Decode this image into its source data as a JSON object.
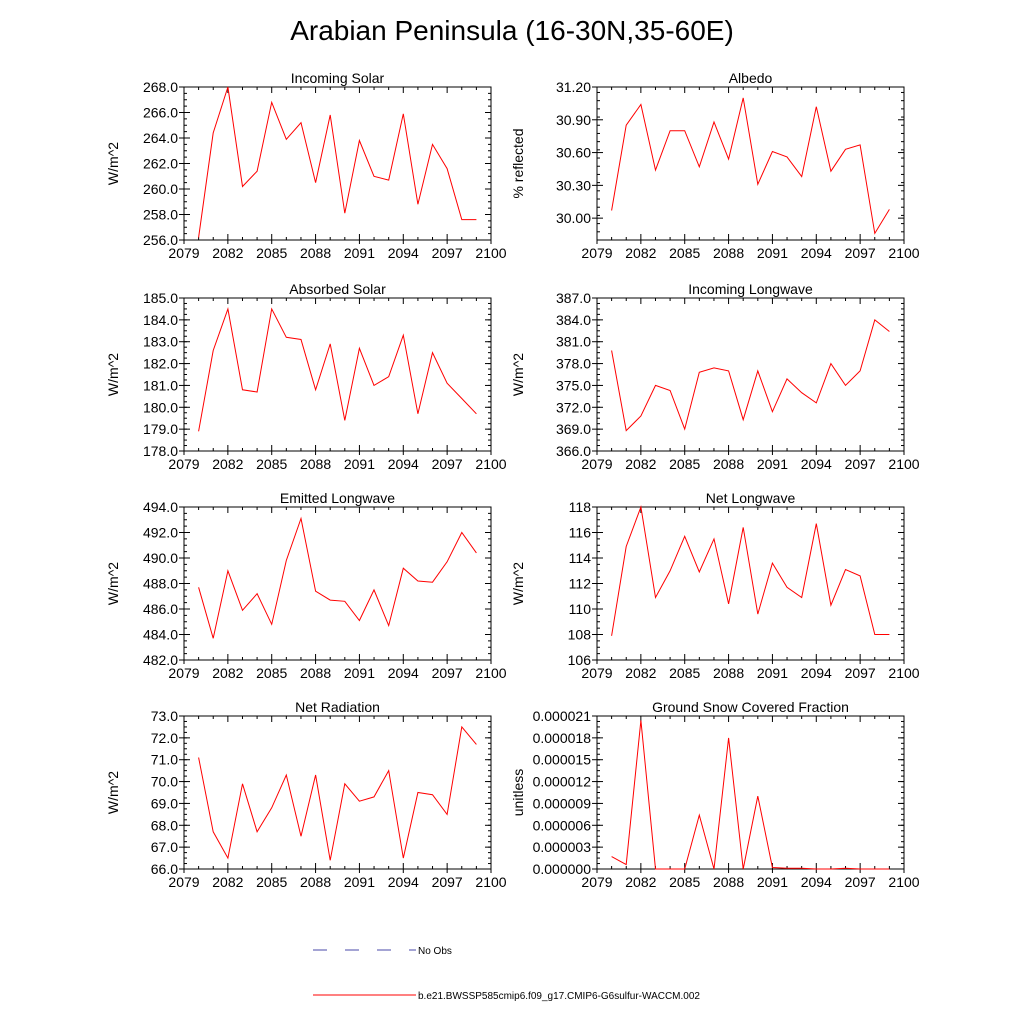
{
  "title": "Arabian Peninsula (16-30N,35-60E)",
  "line_color": "#ff0000",
  "obs_color": "#4a4aa8",
  "legend": {
    "obs_label": "No Obs",
    "model_label": "b.e21.BWSSP585cmip6.f09_g17.CMIP6-G6sulfur-WACCM.002"
  },
  "chart_data": [
    {
      "type": "line",
      "title": "Incoming Solar",
      "ylabel": "W/m^2",
      "xlim": [
        2079,
        2100
      ],
      "ylim": [
        256,
        268
      ],
      "xticks": [
        "2079",
        "2082",
        "2085",
        "2088",
        "2091",
        "2094",
        "2097",
        "2100"
      ],
      "yticks": [
        "256.0",
        "258.0",
        "260.0",
        "262.0",
        "264.0",
        "266.0",
        "268.0"
      ],
      "x": [
        2080,
        2081,
        2082,
        2083,
        2084,
        2085,
        2086,
        2087,
        2088,
        2089,
        2090,
        2091,
        2092,
        2093,
        2094,
        2095,
        2096,
        2097,
        2098,
        2099
      ],
      "values": [
        256.2,
        264.4,
        268.0,
        260.2,
        261.4,
        266.8,
        263.9,
        265.2,
        260.5,
        265.8,
        258.1,
        263.8,
        261.0,
        260.7,
        265.9,
        258.8,
        263.5,
        261.6,
        257.6,
        257.6
      ]
    },
    {
      "type": "line",
      "title": "Albedo",
      "ylabel": "% reflected",
      "xlim": [
        2079,
        2100
      ],
      "ylim": [
        29.8,
        31.2
      ],
      "xticks": [
        "2079",
        "2082",
        "2085",
        "2088",
        "2091",
        "2094",
        "2097",
        "2100"
      ],
      "yticks": [
        "30.00",
        "30.30",
        "30.60",
        "30.90",
        "31.20"
      ],
      "x": [
        2080,
        2081,
        2082,
        2083,
        2084,
        2085,
        2086,
        2087,
        2088,
        2089,
        2090,
        2091,
        2092,
        2093,
        2094,
        2095,
        2096,
        2097,
        2098,
        2099
      ],
      "values": [
        30.07,
        30.85,
        31.04,
        30.44,
        30.8,
        30.8,
        30.47,
        30.88,
        30.54,
        31.1,
        30.31,
        30.61,
        30.56,
        30.38,
        31.02,
        30.43,
        30.63,
        30.67,
        29.86,
        30.08
      ]
    },
    {
      "type": "line",
      "title": "Absorbed Solar",
      "ylabel": "W/m^2",
      "xlim": [
        2079,
        2100
      ],
      "ylim": [
        178,
        185
      ],
      "xticks": [
        "2079",
        "2082",
        "2085",
        "2088",
        "2091",
        "2094",
        "2097",
        "2100"
      ],
      "yticks": [
        "178.0",
        "179.0",
        "180.0",
        "181.0",
        "182.0",
        "183.0",
        "184.0",
        "185.0"
      ],
      "x": [
        2080,
        2081,
        2082,
        2083,
        2084,
        2085,
        2086,
        2087,
        2088,
        2089,
        2090,
        2091,
        2092,
        2093,
        2094,
        2095,
        2096,
        2097,
        2098,
        2099
      ],
      "values": [
        178.9,
        182.6,
        184.5,
        180.8,
        180.7,
        184.5,
        183.2,
        183.1,
        180.8,
        182.9,
        179.4,
        182.7,
        181.0,
        181.4,
        183.3,
        179.7,
        182.5,
        181.1,
        180.4,
        179.7
      ]
    },
    {
      "type": "line",
      "title": "Incoming Longwave",
      "ylabel": "W/m^2",
      "xlim": [
        2079,
        2100
      ],
      "ylim": [
        366,
        387
      ],
      "xticks": [
        "2079",
        "2082",
        "2085",
        "2088",
        "2091",
        "2094",
        "2097",
        "2100"
      ],
      "yticks": [
        "366.0",
        "369.0",
        "372.0",
        "375.0",
        "378.0",
        "381.0",
        "384.0",
        "387.0"
      ],
      "x": [
        2080,
        2081,
        2082,
        2083,
        2084,
        2085,
        2086,
        2087,
        2088,
        2089,
        2090,
        2091,
        2092,
        2093,
        2094,
        2095,
        2096,
        2097,
        2098,
        2099
      ],
      "values": [
        379.8,
        368.8,
        370.8,
        375.0,
        374.3,
        369.0,
        376.8,
        377.4,
        377.0,
        370.3,
        377.0,
        371.4,
        375.9,
        374.0,
        372.6,
        378.0,
        375.0,
        377.0,
        384.0,
        382.4
      ]
    },
    {
      "type": "line",
      "title": "Emitted Longwave",
      "ylabel": "W/m^2",
      "xlim": [
        2079,
        2100
      ],
      "ylim": [
        482,
        494
      ],
      "xticks": [
        "2079",
        "2082",
        "2085",
        "2088",
        "2091",
        "2094",
        "2097",
        "2100"
      ],
      "yticks": [
        "482.0",
        "484.0",
        "486.0",
        "488.0",
        "490.0",
        "492.0",
        "494.0"
      ],
      "x": [
        2080,
        2081,
        2082,
        2083,
        2084,
        2085,
        2086,
        2087,
        2088,
        2089,
        2090,
        2091,
        2092,
        2093,
        2094,
        2095,
        2096,
        2097,
        2098,
        2099
      ],
      "values": [
        487.7,
        483.7,
        489.0,
        485.9,
        487.2,
        484.8,
        489.8,
        493.1,
        487.4,
        486.7,
        486.6,
        485.1,
        487.5,
        484.7,
        489.2,
        488.2,
        488.1,
        489.7,
        492.0,
        490.4
      ]
    },
    {
      "type": "line",
      "title": "Net Longwave",
      "ylabel": "W/m^2",
      "xlim": [
        2079,
        2100
      ],
      "ylim": [
        106,
        118
      ],
      "xticks": [
        "2079",
        "2082",
        "2085",
        "2088",
        "2091",
        "2094",
        "2097",
        "2100"
      ],
      "yticks": [
        "106",
        "108",
        "110",
        "112",
        "114",
        "116",
        "118"
      ],
      "x": [
        2080,
        2081,
        2082,
        2083,
        2084,
        2085,
        2086,
        2087,
        2088,
        2089,
        2090,
        2091,
        2092,
        2093,
        2094,
        2095,
        2096,
        2097,
        2098,
        2099
      ],
      "values": [
        107.9,
        114.9,
        118.0,
        110.9,
        113.0,
        115.7,
        112.9,
        115.5,
        110.4,
        116.4,
        109.6,
        113.6,
        111.7,
        110.9,
        116.7,
        110.3,
        113.1,
        112.6,
        108.0,
        108.0
      ]
    },
    {
      "type": "line",
      "title": "Net Radiation",
      "ylabel": "W/m^2",
      "xlim": [
        2079,
        2100
      ],
      "ylim": [
        66,
        73
      ],
      "xticks": [
        "2079",
        "2082",
        "2085",
        "2088",
        "2091",
        "2094",
        "2097",
        "2100"
      ],
      "yticks": [
        "66.0",
        "67.0",
        "68.0",
        "69.0",
        "70.0",
        "71.0",
        "72.0",
        "73.0"
      ],
      "x": [
        2080,
        2081,
        2082,
        2083,
        2084,
        2085,
        2086,
        2087,
        2088,
        2089,
        2090,
        2091,
        2092,
        2093,
        2094,
        2095,
        2096,
        2097,
        2098,
        2099
      ],
      "values": [
        71.1,
        67.7,
        66.5,
        69.9,
        67.7,
        68.8,
        70.3,
        67.5,
        70.3,
        66.4,
        69.9,
        69.1,
        69.3,
        70.5,
        66.5,
        69.5,
        69.4,
        68.5,
        72.5,
        71.7
      ]
    },
    {
      "type": "line",
      "title": "Ground Snow Covered Fraction",
      "ylabel": "unitless",
      "xlim": [
        2079,
        2100
      ],
      "ylim": [
        0,
        2.1e-05
      ],
      "xticks": [
        "2079",
        "2082",
        "2085",
        "2088",
        "2091",
        "2094",
        "2097",
        "2100"
      ],
      "yticks": [
        "0.000000",
        "0.000003",
        "0.000006",
        "0.000009",
        "0.000012",
        "0.000015",
        "0.000018",
        "0.000021"
      ],
      "x": [
        2080,
        2081,
        2082,
        2083,
        2084,
        2085,
        2086,
        2087,
        2088,
        2089,
        2090,
        2091,
        2092,
        2093,
        2094,
        2095,
        2096,
        2097,
        2098,
        2099
      ],
      "values": [
        1.7e-06,
        6e-07,
        2.04e-05,
        0.0,
        0.0,
        0.0,
        7.4e-06,
        0.0,
        1.8e-05,
        0.0,
        1e-05,
        2e-07,
        1e-07,
        1e-07,
        0.0,
        0.0,
        1e-07,
        0.0,
        0.0,
        0.0
      ]
    }
  ]
}
